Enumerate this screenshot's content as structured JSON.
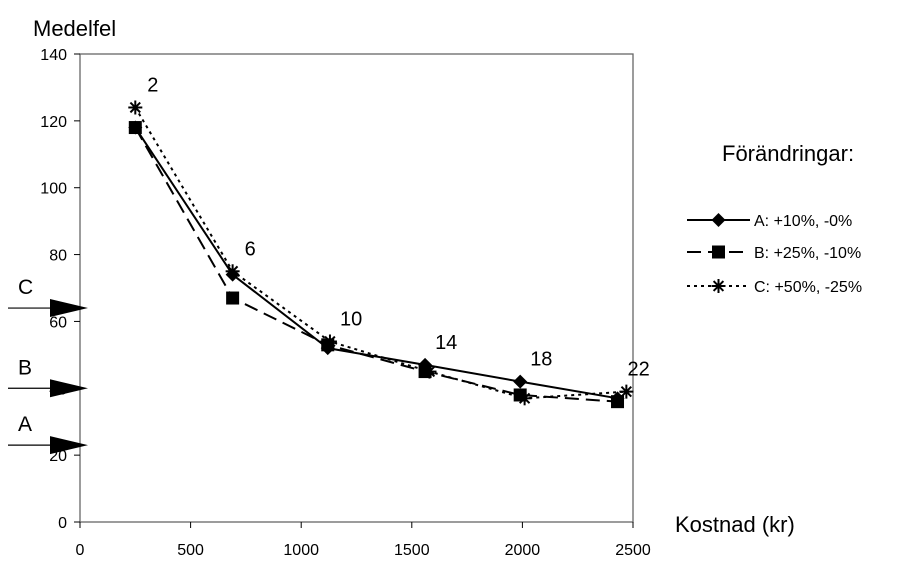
{
  "chart_data": {
    "type": "line",
    "ylabel": "Medelfel",
    "xlabel": "Kostnad (kr)",
    "xlim": [
      0,
      2500
    ],
    "ylim": [
      0,
      140
    ],
    "x_ticks": [
      0,
      500,
      1000,
      1500,
      2000,
      2500
    ],
    "y_ticks": [
      0,
      20,
      40,
      60,
      80,
      100,
      120,
      140
    ],
    "grid": false,
    "legend_title": "Förändringar:",
    "legend_position": "right",
    "series": [
      {
        "name": "A: +10%, -0%",
        "marker": "diamond",
        "line": "solid",
        "points": [
          [
            250,
            118
          ],
          [
            690,
            74
          ],
          [
            1120,
            52
          ],
          [
            1560,
            47
          ],
          [
            1990,
            42
          ],
          [
            2430,
            37
          ]
        ]
      },
      {
        "name": "B: +25%, -10%",
        "marker": "square",
        "line": "dashed",
        "points": [
          [
            250,
            118
          ],
          [
            690,
            67
          ],
          [
            1120,
            53
          ],
          [
            1560,
            45
          ],
          [
            1990,
            38
          ],
          [
            2430,
            36
          ]
        ]
      },
      {
        "name": "C: +50%, -25%",
        "marker": "asterisk",
        "line": "dotted",
        "points": [
          [
            250,
            124
          ],
          [
            690,
            75
          ],
          [
            1130,
            54
          ],
          [
            1580,
            45
          ],
          [
            2010,
            37
          ],
          [
            2470,
            39
          ]
        ]
      }
    ],
    "point_annotations": [
      {
        "text": "2",
        "x": 250,
        "y": 124
      },
      {
        "text": "6",
        "x": 690,
        "y": 75
      },
      {
        "text": "10",
        "x": 1130,
        "y": 54
      },
      {
        "text": "14",
        "x": 1560,
        "y": 47
      },
      {
        "text": "18",
        "x": 1990,
        "y": 42
      },
      {
        "text": "22",
        "x": 2430,
        "y": 39
      }
    ],
    "reference_arrows": [
      {
        "label": "C",
        "y": 64
      },
      {
        "label": "B",
        "y": 40
      },
      {
        "label": "A",
        "y": 23
      }
    ]
  }
}
